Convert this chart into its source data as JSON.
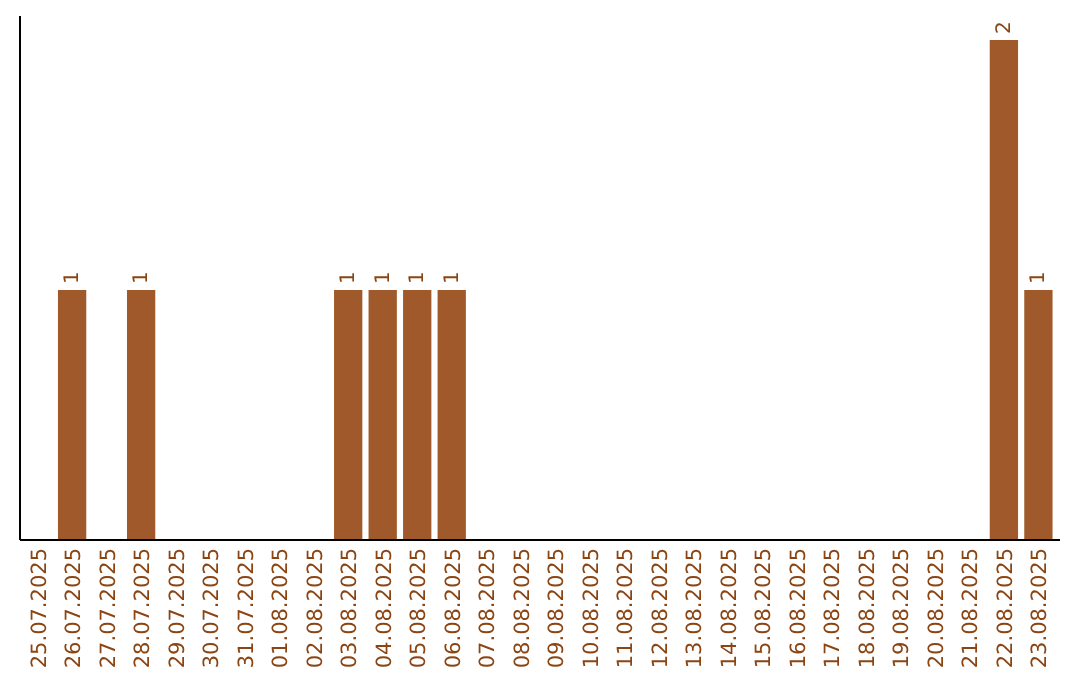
{
  "chart_data": {
    "type": "bar",
    "categories": [
      "25.07.2025",
      "26.07.2025",
      "27.07.2025",
      "28.07.2025",
      "29.07.2025",
      "30.07.2025",
      "31.07.2025",
      "01.08.2025",
      "02.08.2025",
      "03.08.2025",
      "04.08.2025",
      "05.08.2025",
      "06.08.2025",
      "07.08.2025",
      "08.08.2025",
      "09.08.2025",
      "10.08.2025",
      "11.08.2025",
      "12.08.2025",
      "13.08.2025",
      "14.08.2025",
      "15.08.2025",
      "16.08.2025",
      "17.08.2025",
      "18.08.2025",
      "19.08.2025",
      "20.08.2025",
      "21.08.2025",
      "22.08.2025",
      "23.08.2025"
    ],
    "values": [
      0,
      1,
      0,
      1,
      0,
      0,
      0,
      0,
      0,
      1,
      1,
      1,
      1,
      0,
      0,
      0,
      0,
      0,
      0,
      0,
      0,
      0,
      0,
      0,
      0,
      0,
      0,
      0,
      2,
      1
    ],
    "value_labels": [
      null,
      "1",
      null,
      "1",
      null,
      null,
      null,
      null,
      null,
      "1",
      "1",
      "1",
      "1",
      null,
      null,
      null,
      null,
      null,
      null,
      null,
      null,
      null,
      null,
      null,
      null,
      null,
      null,
      null,
      "2",
      "1"
    ],
    "color": "#a0592a",
    "ylim": [
      0,
      2
    ],
    "tick_labels": "x"
  }
}
